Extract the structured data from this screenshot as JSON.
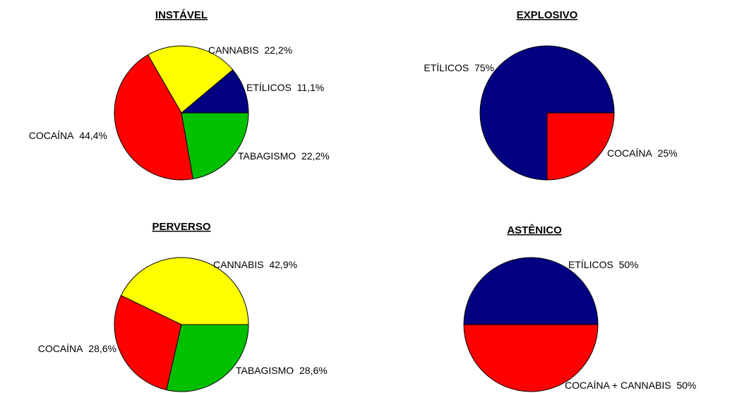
{
  "chart_data": [
    {
      "type": "pie",
      "title": "INSTÁVEL",
      "categories": [
        "ETÍLICOS",
        "CANNABIS",
        "COCAÍNA",
        "TABAGISMO"
      ],
      "values": [
        11.1,
        22.2,
        44.4,
        22.2
      ],
      "value_labels": [
        "11,1%",
        "22,2%",
        "44,4%",
        "22,2%"
      ],
      "colors": [
        "#000080",
        "#ffff00",
        "#ff0000",
        "#00c000"
      ]
    },
    {
      "type": "pie",
      "title": "EXPLOSIVO",
      "categories": [
        "ETÍLICOS",
        "COCAÍNA"
      ],
      "values": [
        75,
        25
      ],
      "value_labels": [
        "75%",
        "25%"
      ],
      "colors": [
        "#000080",
        "#ff0000"
      ]
    },
    {
      "type": "pie",
      "title": "PERVERSO",
      "categories": [
        "CANNABIS",
        "COCAÍNA",
        "TABAGISMO"
      ],
      "values": [
        42.9,
        28.6,
        28.6
      ],
      "value_labels": [
        "42,9%",
        "28,6%",
        "28,6%"
      ],
      "colors": [
        "#ffff00",
        "#ff0000",
        "#00c000"
      ]
    },
    {
      "type": "pie",
      "title": "ASTÊNICO",
      "categories": [
        "ETÍLICOS",
        "COCAÍNA + CANNABIS"
      ],
      "values": [
        50,
        50
      ],
      "value_labels": [
        "50%",
        "50%"
      ],
      "colors": [
        "#000080",
        "#ff0000"
      ]
    }
  ]
}
